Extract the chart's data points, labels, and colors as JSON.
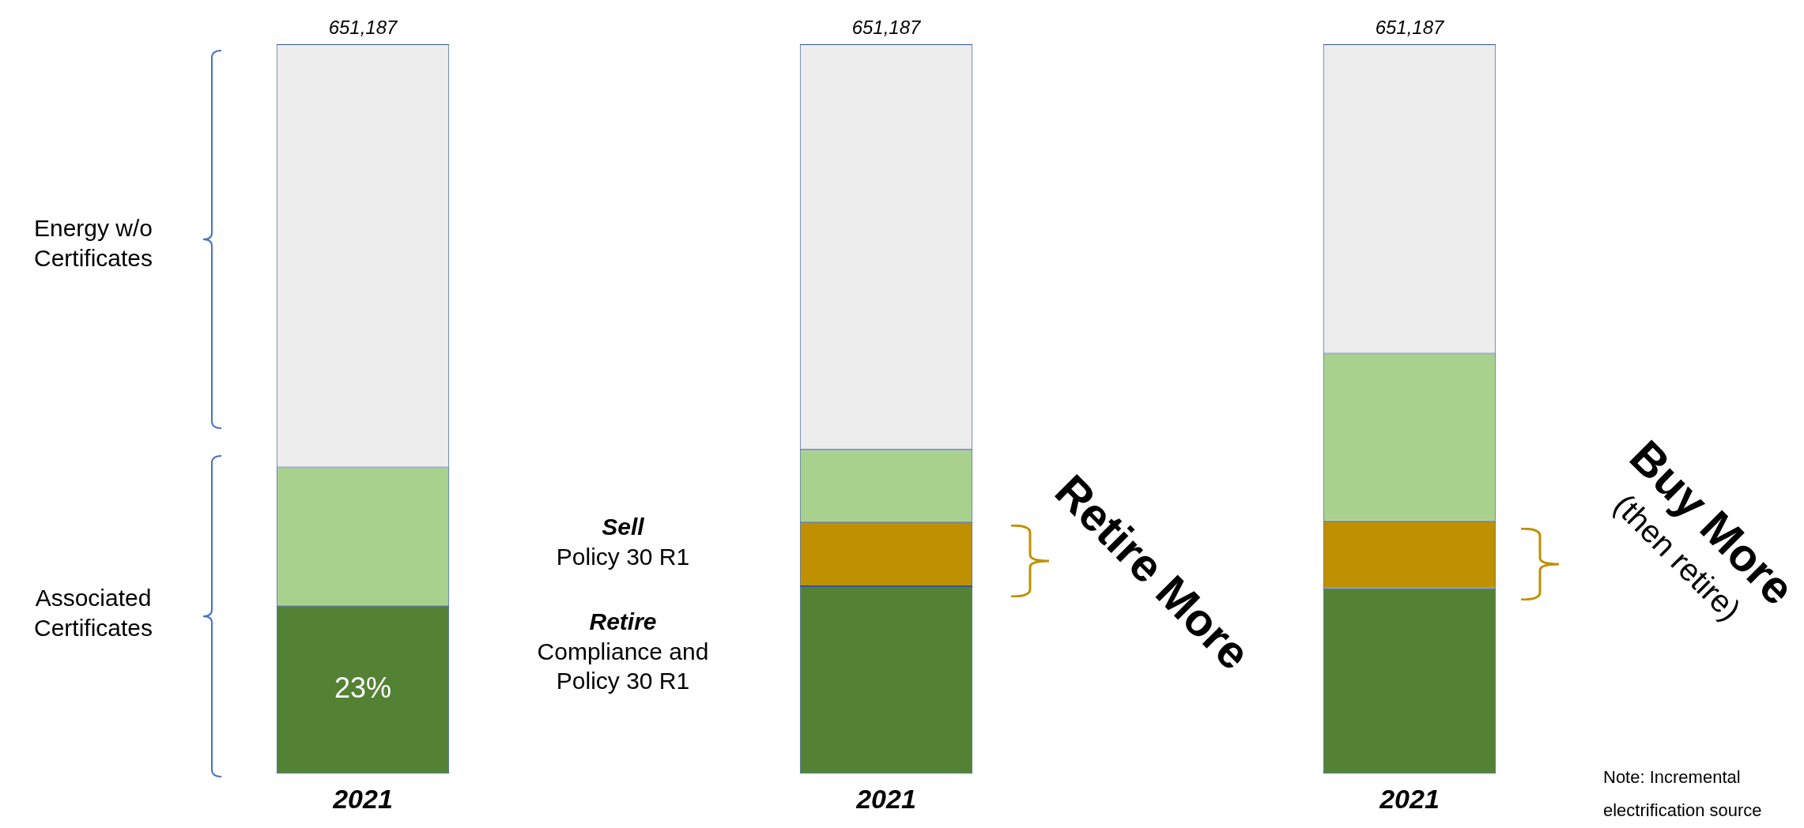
{
  "chart_data": {
    "type": "bar",
    "stacked": true,
    "tick_labels": "x",
    "categories": [
      "2021",
      "2021",
      "2021"
    ],
    "series": [
      {
        "color": "#548235",
        "values": [
          23,
          25.7,
          25.4
        ],
        "value_labels": [
          "23%",
          null,
          null
        ]
      },
      {
        "color": "#bf9000",
        "values": [
          0,
          8.8,
          9.2
        ]
      },
      {
        "color": "#a9d18e",
        "values": [
          19,
          9.9,
          23
        ]
      },
      {
        "color": "#ededed",
        "values": [
          58,
          55.6,
          42.4
        ]
      }
    ],
    "annotations": [
      "Energy w/o\nCertificates",
      "Associated\nCertificates",
      "Sell\nPolicy 30 R1",
      "Retire\nCompliance and\nPolicy 30 R1",
      "Retire More",
      "Buy More\n(then retire)",
      "Note: Incremental\nelectrification source",
      "651,187",
      "651,187",
      "651,187"
    ],
    "grid": false,
    "legend": false
  }
}
